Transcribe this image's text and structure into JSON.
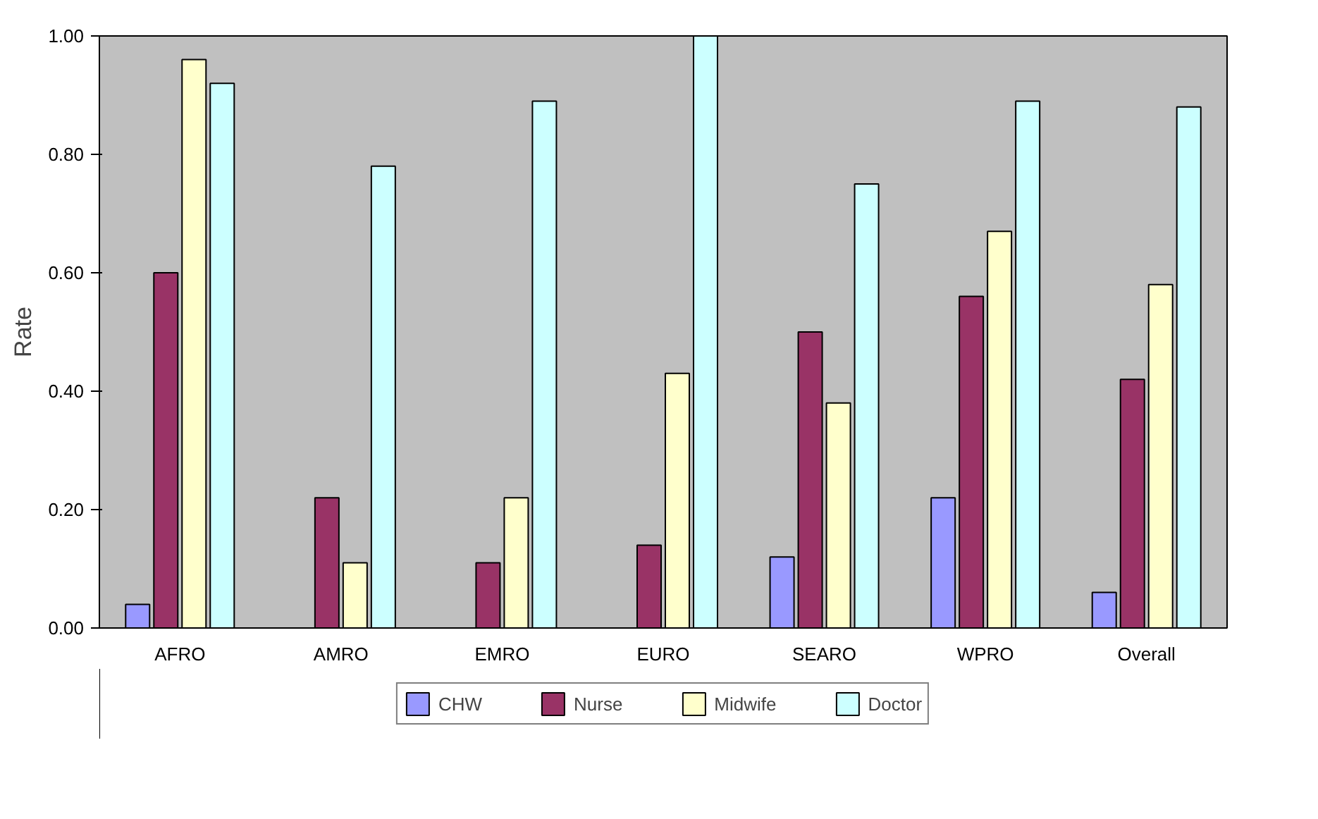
{
  "chart_data": {
    "type": "bar",
    "ylabel": "Rate",
    "categories": [
      "AFRO",
      "AMRO",
      "EMRO",
      "EURO",
      "SEARO",
      "WPRO",
      "Overall"
    ],
    "series": [
      {
        "name": "CHW",
        "color": "#9999ff",
        "values": [
          0.04,
          null,
          null,
          null,
          0.12,
          0.22,
          0.06
        ]
      },
      {
        "name": "Nurse",
        "color": "#993366",
        "values": [
          0.6,
          0.22,
          0.11,
          0.14,
          0.5,
          0.56,
          0.42
        ]
      },
      {
        "name": "Midwife",
        "color": "#ffffcc",
        "values": [
          0.96,
          0.11,
          0.22,
          0.43,
          0.38,
          0.67,
          0.58
        ]
      },
      {
        "name": "Doctor",
        "color": "#ccffff",
        "values": [
          0.92,
          0.78,
          0.89,
          1.0,
          0.75,
          0.89,
          0.88
        ]
      }
    ],
    "ylim": [
      0,
      1
    ],
    "yticks": [
      {
        "value": 0,
        "label": "0.00"
      },
      {
        "value": 0.2,
        "label": "0.20"
      },
      {
        "value": 0.4,
        "label": "0.40"
      },
      {
        "value": 0.6,
        "label": "0.60"
      },
      {
        "value": 0.8,
        "label": "0.80"
      },
      {
        "value": 1,
        "label": "1.00"
      }
    ],
    "grid": false,
    "legend": "bottom"
  }
}
